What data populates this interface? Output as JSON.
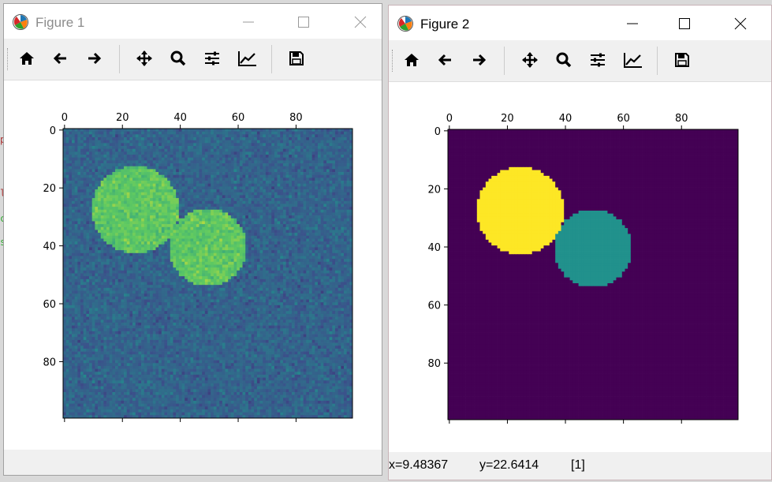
{
  "windows": [
    {
      "title": "Figure 1",
      "toolbar": [
        "home-icon",
        "back-icon",
        "forward-icon",
        "pan-icon",
        "zoom-icon",
        "configure-subplots-icon",
        "edit-axes-icon",
        "save-icon"
      ],
      "axes": {
        "x_ticks": [
          "0",
          "20",
          "40",
          "60",
          "80"
        ],
        "y_ticks": [
          "0",
          "20",
          "40",
          "60",
          "80"
        ],
        "xlim": [
          0,
          100
        ],
        "ylim": [
          100,
          0
        ]
      }
    },
    {
      "title": "Figure 2",
      "toolbar": [
        "home-icon",
        "back-icon",
        "forward-icon",
        "pan-icon",
        "zoom-icon",
        "configure-subplots-icon",
        "edit-axes-icon",
        "save-icon"
      ],
      "axes": {
        "x_ticks": [
          "0",
          "20",
          "40",
          "60",
          "80"
        ],
        "y_ticks": [
          "0",
          "20",
          "40",
          "60",
          "80"
        ],
        "xlim": [
          0,
          100
        ],
        "ylim": [
          100,
          0
        ]
      },
      "status": {
        "x": "x=9.48367",
        "y": "y=22.6414",
        "value": "[1]"
      }
    }
  ],
  "images": {
    "grid_size": 100,
    "colormap": "viridis",
    "figure1": {
      "description_values": "noisy image with two bright discs",
      "background_level": 0.32,
      "disc_level": 0.74
    },
    "figure2": {
      "labels": [
        0,
        1,
        2
      ],
      "label_colors": [
        "#440154",
        "#21918c",
        "#fde725"
      ]
    },
    "discs": [
      {
        "label": 2,
        "center": [
          25,
          28
        ],
        "radius": 15
      },
      {
        "label": 1,
        "center": [
          50,
          41
        ],
        "radius": 13.5
      }
    ]
  },
  "colors": {
    "viridis_low": "#440154",
    "viridis_mid": "#21918c",
    "viridis_high": "#fde725"
  }
}
